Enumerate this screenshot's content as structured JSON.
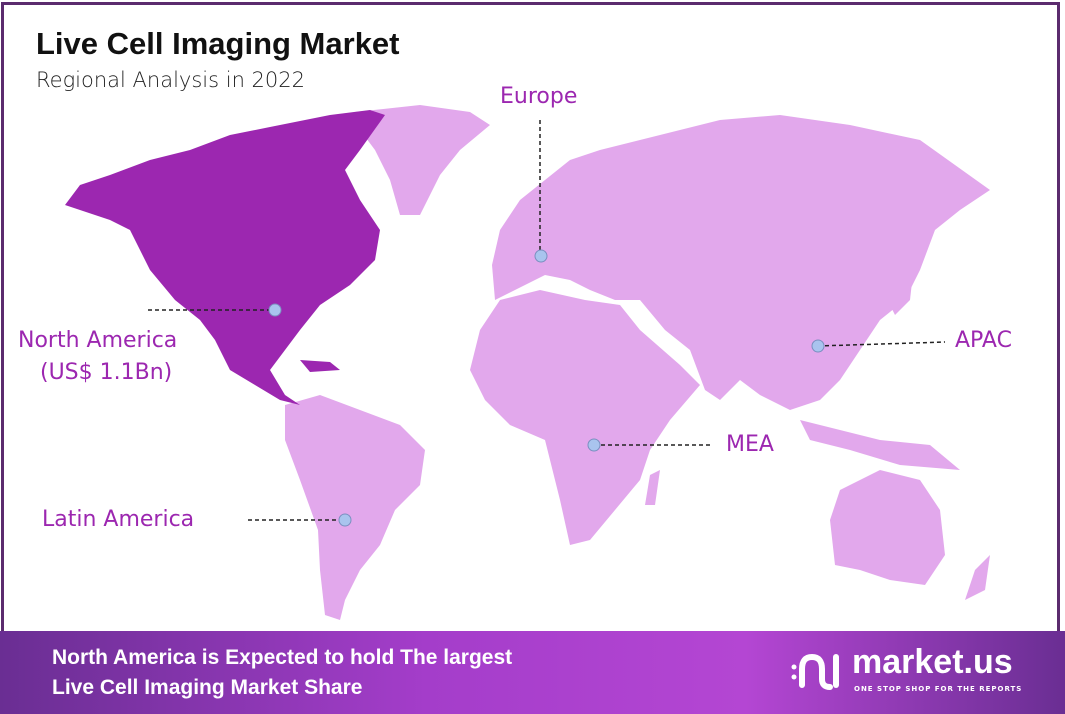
{
  "header": {
    "title": "Live Cell Imaging Market",
    "subtitle": "Regional Analysis in 2022"
  },
  "colors": {
    "highlight_region": "#9c27b0",
    "other_regions": "#e2a8ec",
    "label": "#9c27b0",
    "border": "#5b2b6e",
    "marker": "#a9c4ee"
  },
  "regions": [
    {
      "name": "North America",
      "value": "(US$ 1.1Bn)",
      "highlighted": true
    },
    {
      "name": "Europe"
    },
    {
      "name": "APAC"
    },
    {
      "name": "MEA"
    },
    {
      "name": "Latin America"
    }
  ],
  "footer": {
    "line1": "North America is Expected to hold The largest",
    "line2": "Live Cell Imaging Market Share"
  },
  "logo": {
    "name": "market.us",
    "tagline": "ONE STOP SHOP FOR THE REPORTS"
  }
}
